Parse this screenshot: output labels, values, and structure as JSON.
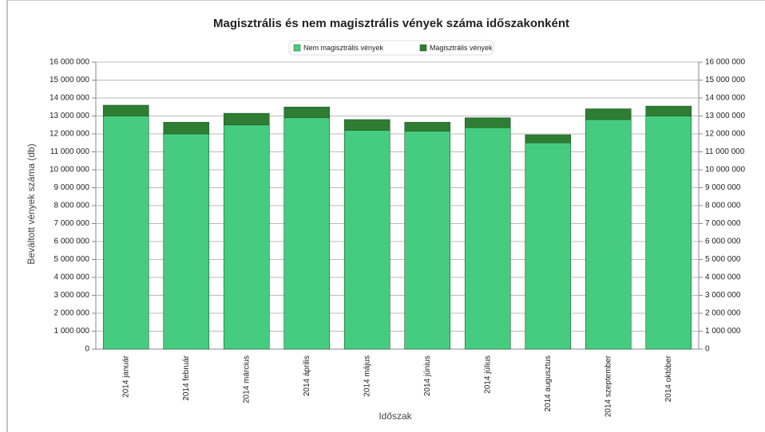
{
  "chart_data": {
    "type": "bar",
    "stacked": true,
    "title": "Magisztrális és nem magisztrális vények száma időszakonként",
    "x_label": "Időszak",
    "y_label": "Beváltott vények száma (db)",
    "legend": "top",
    "grid": true,
    "categories": [
      "2014 január",
      "2014 február",
      "2014 március",
      "2014 április",
      "2014 május",
      "2014 június",
      "2014 július",
      "2014 augusztus",
      "2014 szeptember",
      "2014 október"
    ],
    "series": [
      {
        "name": "Nem magisztrális vények",
        "color": "#45cc80",
        "values": [
          13000000,
          12000000,
          12500000,
          12900000,
          12200000,
          12150000,
          12350000,
          11500000,
          12800000,
          13000000
        ]
      },
      {
        "name": "Magisztrális vények",
        "color": "#2e7d32",
        "values": [
          600000,
          650000,
          650000,
          600000,
          600000,
          500000,
          550000,
          450000,
          600000,
          550000
        ]
      }
    ],
    "ylim": [
      0,
      16000000
    ],
    "yticks": [
      0,
      {
        "value": 1000000,
        "label": "1 000 000"
      },
      {
        "value": 2000000,
        "label": "2 000 000"
      },
      {
        "value": 3000000,
        "label": "3 000 000"
      },
      {
        "value": 4000000,
        "label": "4 000 000"
      },
      {
        "value": 5000000,
        "label": "5 000 000"
      },
      {
        "value": 6000000,
        "label": "6 000 000"
      },
      {
        "value": 7000000,
        "label": "7 000 000"
      },
      {
        "value": 8000000,
        "label": "8 000 000"
      },
      {
        "value": 9000000,
        "label": "9 000 000"
      },
      {
        "value": 10000000,
        "label": "10 000 000"
      },
      {
        "value": 11000000,
        "label": "11 000 000"
      },
      {
        "value": 12000000,
        "label": "12 000 000"
      },
      {
        "value": 13000000,
        "label": "13 000 000"
      },
      {
        "value": 14000000,
        "label": "14 000 000"
      },
      {
        "value": 15000000,
        "label": "15 000 000"
      },
      {
        "value": 16000000,
        "label": "16 000 000"
      }
    ],
    "y2lim": [
      0,
      16000000
    ],
    "y2ticks": [
      0,
      {
        "value": 1000000,
        "label": "1 000 000"
      },
      {
        "value": 2000000,
        "label": "2 000 000"
      },
      {
        "value": 3000000,
        "label": "3 000 000"
      },
      {
        "value": 4000000,
        "label": "4 000 000"
      },
      {
        "value": 5000000,
        "label": "5 000 000"
      },
      {
        "value": 6000000,
        "label": "6 000 000"
      },
      {
        "value": 7000000,
        "label": "7 000 000"
      },
      {
        "value": 8000000,
        "label": "8 000 000"
      },
      {
        "value": 9000000,
        "label": "9 000 000"
      },
      {
        "value": 10000000,
        "label": "10 000 000"
      },
      {
        "value": 11000000,
        "label": "11 000 000"
      },
      {
        "value": 12000000,
        "label": "12 000 000"
      },
      {
        "value": 13000000,
        "label": "13 000 000"
      },
      {
        "value": 14000000,
        "label": "14 000 000"
      },
      {
        "value": 15000000,
        "label": "15 000 000"
      },
      {
        "value": 16000000,
        "label": "16 000 000"
      }
    ]
  }
}
